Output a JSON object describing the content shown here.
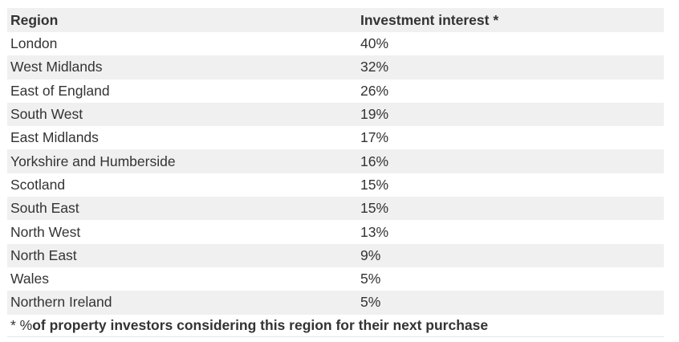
{
  "table": {
    "headers": {
      "region": "Region",
      "interest": "Investment interest *"
    },
    "rows": [
      {
        "region": "London",
        "interest": "40%"
      },
      {
        "region": "West Midlands",
        "interest": "32%"
      },
      {
        "region": "East of England",
        "interest": "26%"
      },
      {
        "region": "South West",
        "interest": "19%"
      },
      {
        "region": "East Midlands",
        "interest": "17%"
      },
      {
        "region": "Yorkshire and Humberside",
        "interest": "16%"
      },
      {
        "region": "Scotland",
        "interest": "15%"
      },
      {
        "region": "South East",
        "interest": "15%"
      },
      {
        "region": "North West",
        "interest": "13%"
      },
      {
        "region": "North East",
        "interest": "9%"
      },
      {
        "region": "Wales",
        "interest": "5%"
      },
      {
        "region": "Northern Ireland",
        "interest": "5%"
      }
    ],
    "footnote": {
      "marker": "* %",
      "text": " of property investors considering this region for their next purchase"
    }
  }
}
